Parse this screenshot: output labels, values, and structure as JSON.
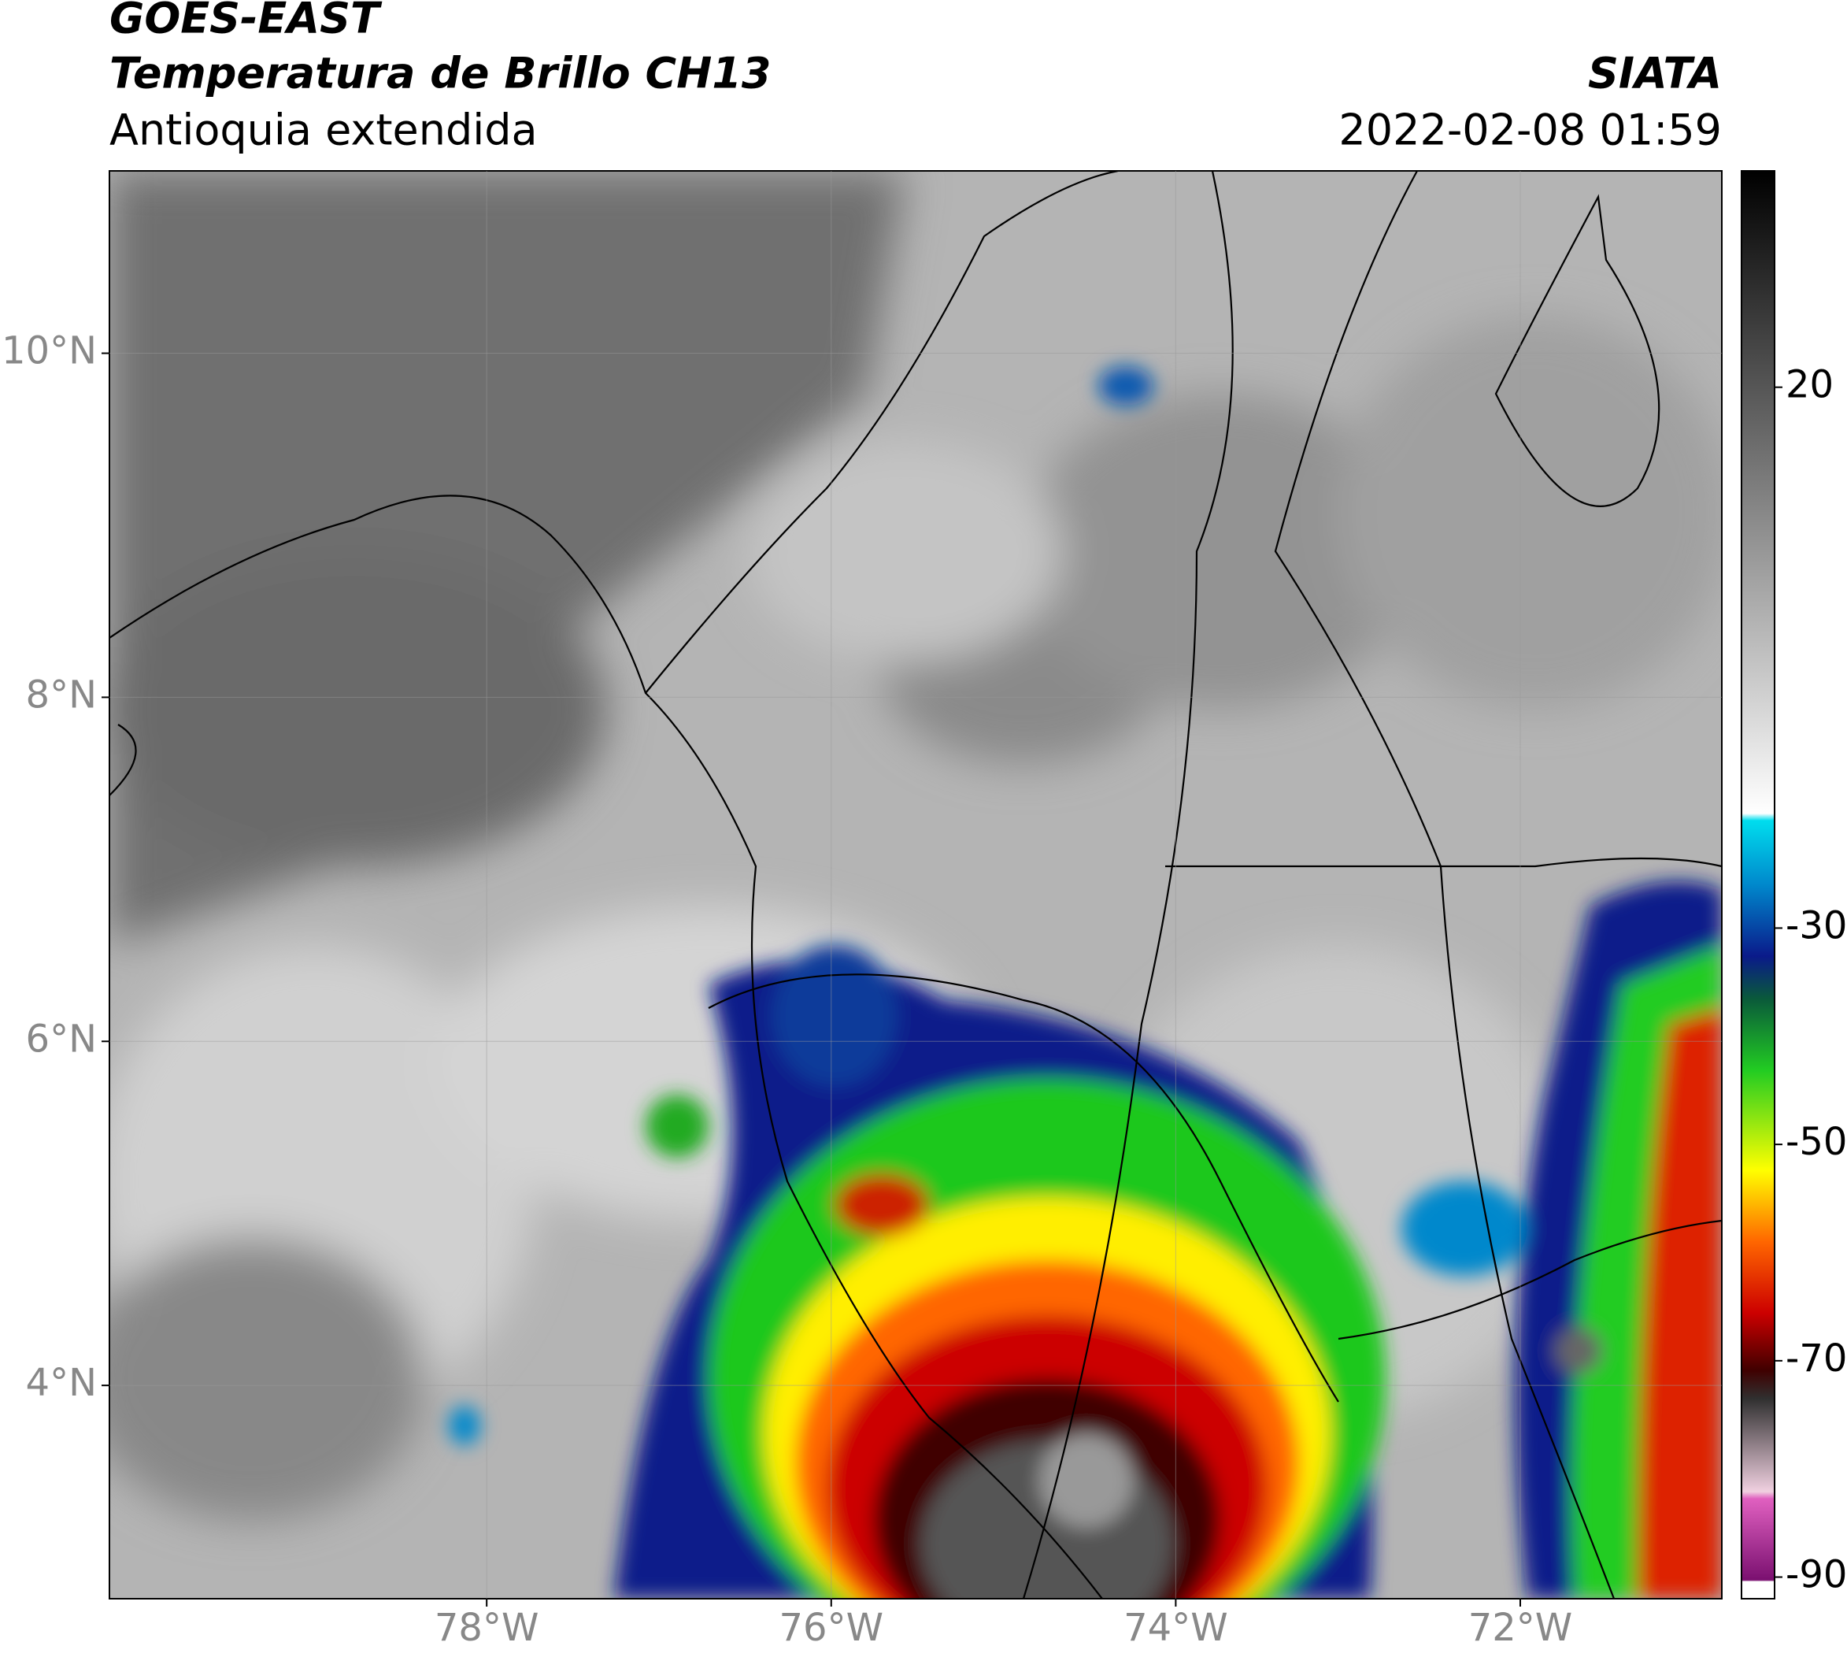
{
  "header": {
    "satellite": "GOES-EAST",
    "product": "Temperatura de Brillo CH13",
    "region": "Antioquia extendida",
    "organization": "SIATA",
    "datetime": "2022-02-08 01:59"
  },
  "map": {
    "xlim": [
      -80.19,
      -70.83
    ],
    "ylim": [
      2.76,
      11.06
    ],
    "xticks": [
      {
        "value": -78,
        "label": "78°W"
      },
      {
        "value": -76,
        "label": "76°W"
      },
      {
        "value": -74,
        "label": "74°W"
      },
      {
        "value": -72,
        "label": "72°W"
      }
    ],
    "yticks": [
      {
        "value": 10,
        "label": "10°N"
      },
      {
        "value": 8,
        "label": "8°N"
      },
      {
        "value": 6,
        "label": "6°N"
      },
      {
        "value": 4,
        "label": "4°N"
      }
    ],
    "grid": true
  },
  "colorbar": {
    "lim": [
      -92,
      40
    ],
    "ticks": [
      20,
      -30,
      -50,
      -70,
      -90
    ]
  }
}
